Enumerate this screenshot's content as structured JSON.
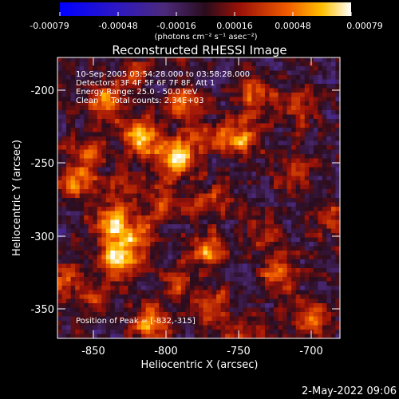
{
  "chart_data": {
    "type": "heatmap",
    "title": "Reconstructed RHESSI Image",
    "xlabel": "Heliocentric X (arcsec)",
    "ylabel": "Heliocentric Y (arcsec)",
    "xlim": [
      -876,
      -681
    ],
    "ylim": [
      -372,
      -177
    ],
    "xticks": [
      -850,
      -800,
      -750,
      -700
    ],
    "yticks": [
      -350,
      -300,
      -250,
      -200
    ],
    "grid": false,
    "colorbar": {
      "ticks": [
        -0.00079,
        -0.00048,
        -0.00016,
        0.00016,
        0.00048,
        0.00079
      ],
      "tick_labels": [
        "-0.00079",
        "-0.00048",
        "-0.00016",
        "0.00016",
        "0.00048",
        "0.00079"
      ],
      "unit_label": "(photons cm⁻² s⁻¹ asec⁻²)",
      "range": [
        -0.00079,
        0.00079
      ]
    },
    "info_lines": [
      "10-Sep-2005 03:54:28.000 to 03:58:28.000",
      "Detectors: 3F 4F 5F 6F 7F 8F, Att 1",
      "Energy Range: 25.0 - 50.0 keV",
      "Clean     Total counts: 2.34E+03"
    ],
    "peak_text": "Position of Peak = [-832,-315]",
    "blobs": [
      {
        "x": -833,
        "y": -318,
        "v": 0.00079
      },
      {
        "x": -818,
        "y": -232,
        "v": 0.00072
      },
      {
        "x": -795,
        "y": -247,
        "v": 0.0007
      },
      {
        "x": -843,
        "y": -208,
        "v": 0.0006
      },
      {
        "x": -752,
        "y": -232,
        "v": 0.0006
      },
      {
        "x": -838,
        "y": -292,
        "v": 0.00058
      },
      {
        "x": -862,
        "y": -263,
        "v": 0.00055
      },
      {
        "x": -772,
        "y": -312,
        "v": 0.00058
      },
      {
        "x": -722,
        "y": -327,
        "v": 0.00055
      },
      {
        "x": -701,
        "y": -358,
        "v": 0.0005
      },
      {
        "x": -812,
        "y": -362,
        "v": 0.0005
      },
      {
        "x": -768,
        "y": -352,
        "v": 0.00045
      },
      {
        "x": -788,
        "y": -208,
        "v": 0.00042
      },
      {
        "x": -740,
        "y": -202,
        "v": 0.0004
      },
      {
        "x": -713,
        "y": -257,
        "v": 0.00042
      },
      {
        "x": -802,
        "y": -277,
        "v": 0.0004
      },
      {
        "x": -768,
        "y": -277,
        "v": 0.00038
      },
      {
        "x": -707,
        "y": -212,
        "v": 0.00035
      },
      {
        "x": -870,
        "y": -330,
        "v": 0.0004
      },
      {
        "x": -848,
        "y": -345,
        "v": 0.00035
      },
      {
        "x": -733,
        "y": -297,
        "v": 0.00032
      },
      {
        "x": -745,
        "y": -372,
        "v": 0.0003
      },
      {
        "x": -822,
        "y": -302,
        "v": 0.00045
      },
      {
        "x": -822,
        "y": -187,
        "v": 0.0003
      },
      {
        "x": -685,
        "y": -290,
        "v": 0.00035
      },
      {
        "x": -855,
        "y": -240,
        "v": 0.0004
      },
      {
        "x": -780,
        "y": -235,
        "v": 0.00038
      },
      {
        "x": -792,
        "y": -335,
        "v": 0.00032
      },
      {
        "x": -832,
        "y": -268,
        "v": 0.0003
      }
    ]
  },
  "footer_timestamp": "2-May-2022 09:06"
}
